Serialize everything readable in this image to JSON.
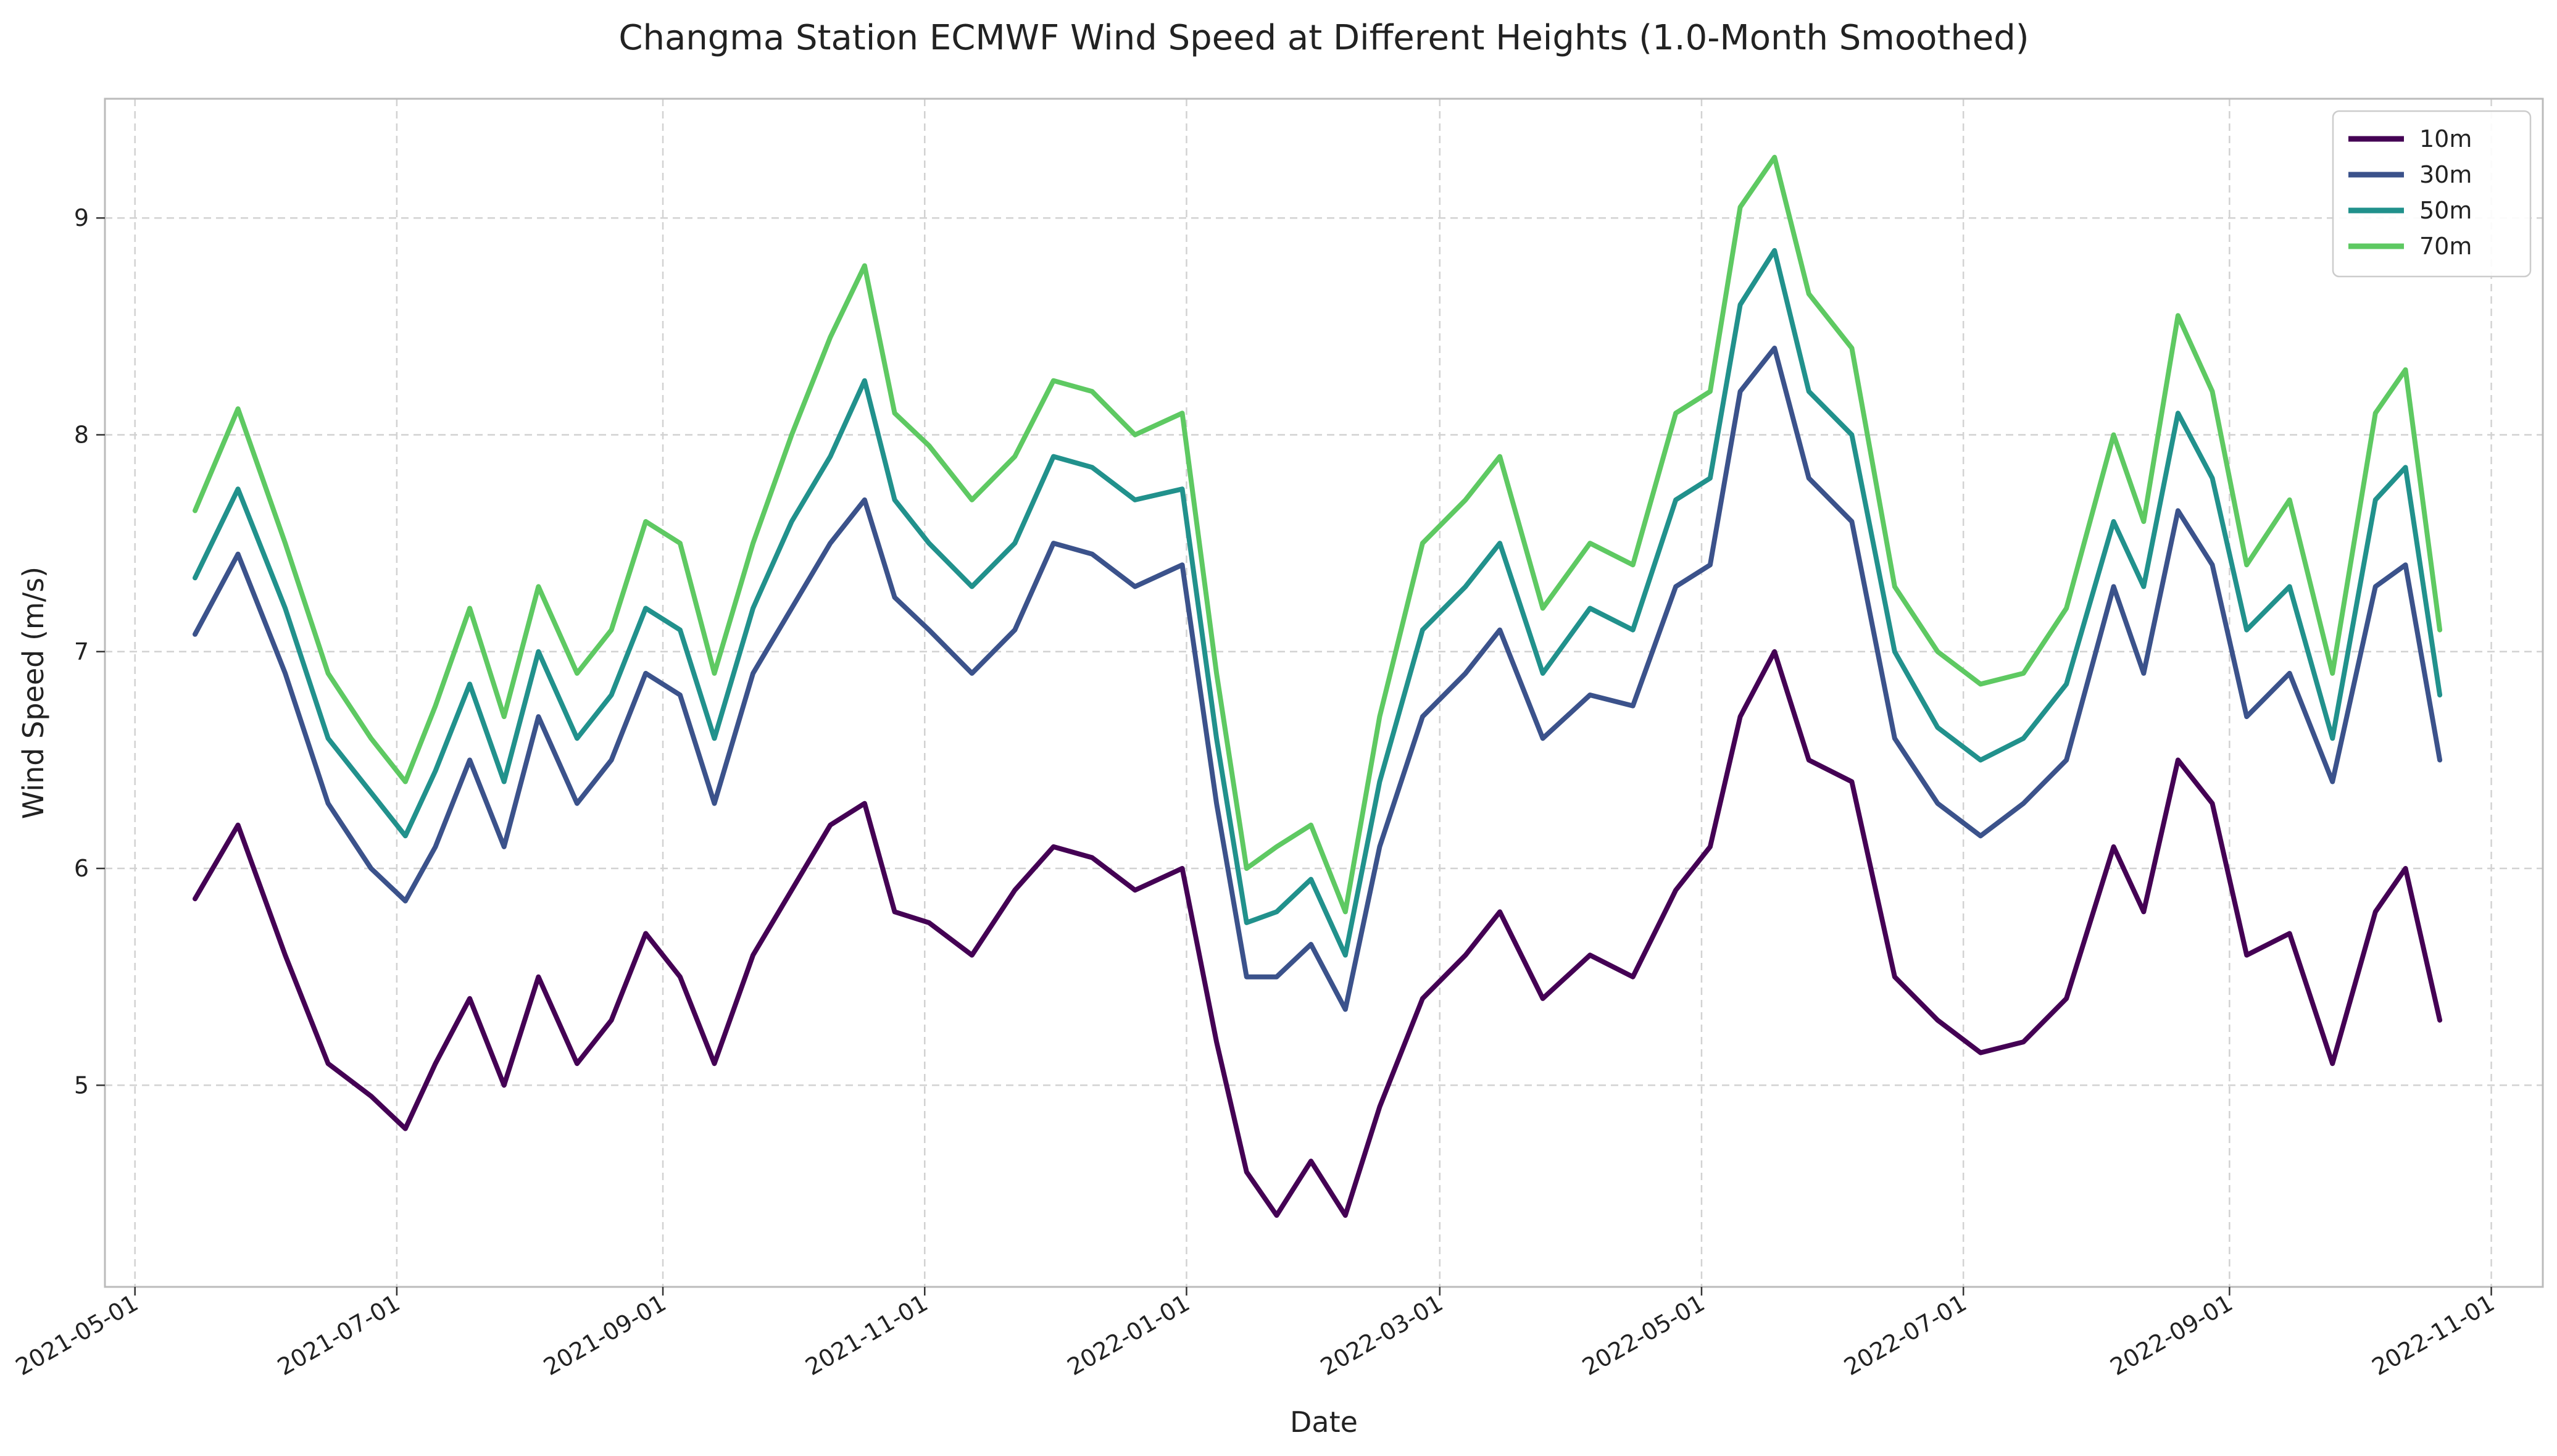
{
  "chart_data": {
    "type": "line",
    "title": "Changma Station ECMWF Wind Speed at Different Heights (1.0-Month Smoothed)",
    "xlabel": "Date",
    "ylabel": "Wind Speed (m/s)",
    "x_ticks": [
      "2021-05-01",
      "2021-07-01",
      "2021-09-01",
      "2021-11-01",
      "2022-01-01",
      "2022-03-01",
      "2022-05-01",
      "2022-07-01",
      "2022-09-01",
      "2022-11-01"
    ],
    "y_ticks": [
      5,
      6,
      7,
      8,
      9
    ],
    "xlim": [
      "2021-04-24",
      "2022-11-13"
    ],
    "ylim": [
      4.07,
      9.55
    ],
    "grid": true,
    "legend_position": "top-right",
    "x": [
      "2021-05-15",
      "2021-05-25",
      "2021-06-05",
      "2021-06-15",
      "2021-06-25",
      "2021-07-03",
      "2021-07-10",
      "2021-07-18",
      "2021-07-26",
      "2021-08-03",
      "2021-08-12",
      "2021-08-20",
      "2021-08-28",
      "2021-09-05",
      "2021-09-13",
      "2021-09-22",
      "2021-10-01",
      "2021-10-10",
      "2021-10-18",
      "2021-10-25",
      "2021-11-02",
      "2021-11-12",
      "2021-11-22",
      "2021-12-01",
      "2021-12-10",
      "2021-12-20",
      "2021-12-31",
      "2022-01-08",
      "2022-01-15",
      "2022-01-22",
      "2022-01-30",
      "2022-02-07",
      "2022-02-15",
      "2022-02-25",
      "2022-03-07",
      "2022-03-15",
      "2022-03-25",
      "2022-04-05",
      "2022-04-15",
      "2022-04-25",
      "2022-05-03",
      "2022-05-10",
      "2022-05-18",
      "2022-05-26",
      "2022-06-05",
      "2022-06-15",
      "2022-06-25",
      "2022-07-05",
      "2022-07-15",
      "2022-07-25",
      "2022-08-05",
      "2022-08-12",
      "2022-08-20",
      "2022-08-28",
      "2022-09-05",
      "2022-09-15",
      "2022-09-25",
      "2022-10-05",
      "2022-10-12",
      "2022-10-20"
    ],
    "series": [
      {
        "name": "10m",
        "color": "#440154",
        "values": [
          5.86,
          6.2,
          5.6,
          5.1,
          4.95,
          4.8,
          5.1,
          5.4,
          5.0,
          5.5,
          5.1,
          5.3,
          5.7,
          5.5,
          5.1,
          5.6,
          5.9,
          6.2,
          6.3,
          5.8,
          5.75,
          5.6,
          5.9,
          6.1,
          6.05,
          5.9,
          6.0,
          5.2,
          4.6,
          4.4,
          4.65,
          4.4,
          4.9,
          5.4,
          5.6,
          5.8,
          5.4,
          5.6,
          5.5,
          5.9,
          6.1,
          6.7,
          7.0,
          6.5,
          6.4,
          5.5,
          5.3,
          5.15,
          5.2,
          5.4,
          6.1,
          5.8,
          6.5,
          6.3,
          5.6,
          5.7,
          5.1,
          5.8,
          6.0,
          5.3
        ]
      },
      {
        "name": "30m",
        "color": "#3b528b",
        "values": [
          7.08,
          7.45,
          6.9,
          6.3,
          6.0,
          5.85,
          6.1,
          6.5,
          6.1,
          6.7,
          6.3,
          6.5,
          6.9,
          6.8,
          6.3,
          6.9,
          7.2,
          7.5,
          7.7,
          7.25,
          7.1,
          6.9,
          7.1,
          7.5,
          7.45,
          7.3,
          7.4,
          6.3,
          5.5,
          5.5,
          5.65,
          5.35,
          6.1,
          6.7,
          6.9,
          7.1,
          6.6,
          6.8,
          6.75,
          7.3,
          7.4,
          8.2,
          8.4,
          7.8,
          7.6,
          6.6,
          6.3,
          6.15,
          6.3,
          6.5,
          7.3,
          6.9,
          7.65,
          7.4,
          6.7,
          6.9,
          6.4,
          7.3,
          7.4,
          6.5
        ]
      },
      {
        "name": "50m",
        "color": "#21918c",
        "values": [
          7.34,
          7.75,
          7.2,
          6.6,
          6.35,
          6.15,
          6.45,
          6.85,
          6.4,
          7.0,
          6.6,
          6.8,
          7.2,
          7.1,
          6.6,
          7.2,
          7.6,
          7.9,
          8.25,
          7.7,
          7.5,
          7.3,
          7.5,
          7.9,
          7.85,
          7.7,
          7.75,
          6.6,
          5.75,
          5.8,
          5.95,
          5.6,
          6.4,
          7.1,
          7.3,
          7.5,
          6.9,
          7.2,
          7.1,
          7.7,
          7.8,
          8.6,
          8.85,
          8.2,
          8.0,
          7.0,
          6.65,
          6.5,
          6.6,
          6.85,
          7.6,
          7.3,
          8.1,
          7.8,
          7.1,
          7.3,
          6.6,
          7.7,
          7.85,
          6.8
        ]
      },
      {
        "name": "70m",
        "color": "#5ec962",
        "values": [
          7.65,
          8.12,
          7.5,
          6.9,
          6.6,
          6.4,
          6.75,
          7.2,
          6.7,
          7.3,
          6.9,
          7.1,
          7.6,
          7.5,
          6.9,
          7.5,
          8.0,
          8.45,
          8.78,
          8.1,
          7.95,
          7.7,
          7.9,
          8.25,
          8.2,
          8.0,
          8.1,
          6.9,
          6.0,
          6.1,
          6.2,
          5.8,
          6.7,
          7.5,
          7.7,
          7.9,
          7.2,
          7.5,
          7.4,
          8.1,
          8.2,
          9.05,
          9.28,
          8.65,
          8.4,
          7.3,
          7.0,
          6.85,
          6.9,
          7.2,
          8.0,
          7.6,
          8.55,
          8.2,
          7.4,
          7.7,
          6.9,
          8.1,
          8.3,
          7.1
        ]
      }
    ]
  }
}
